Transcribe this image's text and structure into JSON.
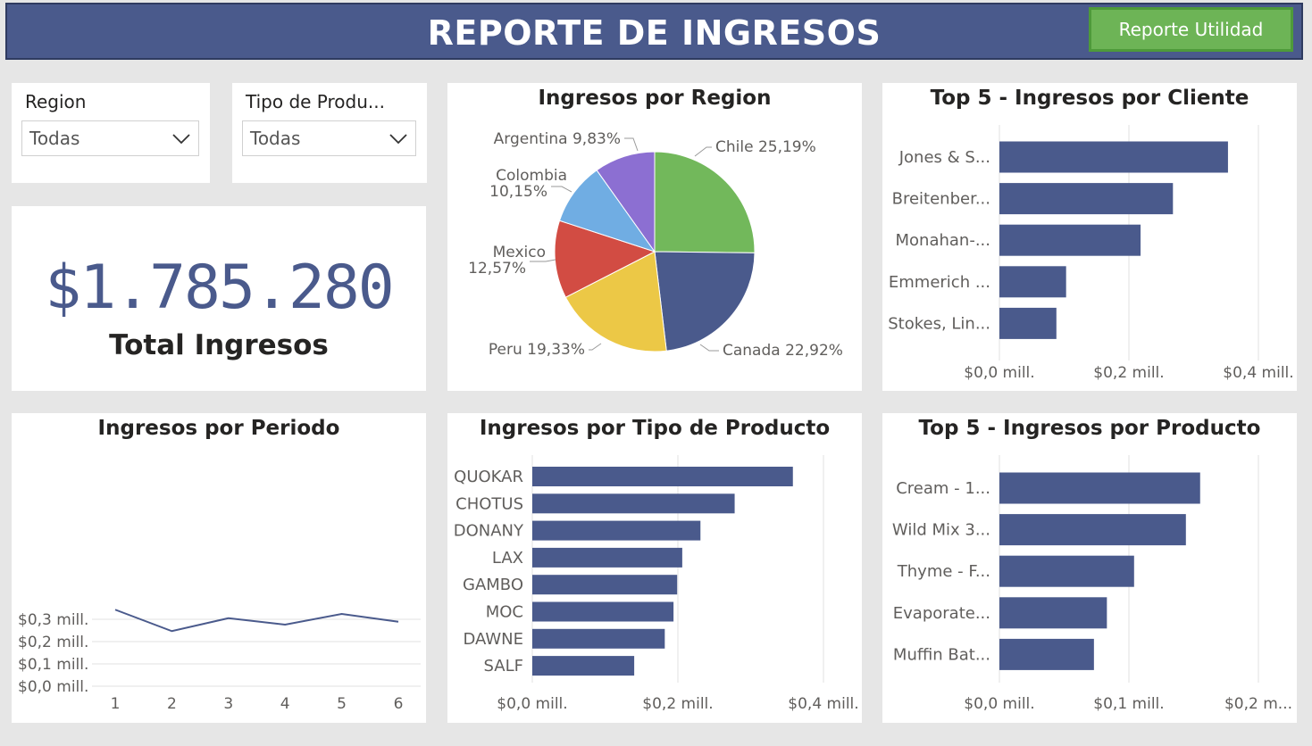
{
  "header": {
    "title": "REPORTE DE INGRESOS",
    "button_label": "Reporte Utilidad"
  },
  "colors": {
    "header": "#4a5a8c",
    "button": "#6db456",
    "bar": "#4a5a8c",
    "axis_text": "#605e5c"
  },
  "slicers": [
    {
      "label": "Region",
      "value": "Todas"
    },
    {
      "label": "Tipo de Produ...",
      "value": "Todas"
    }
  ],
  "kpi": {
    "value": "$1.785.280",
    "label": "Total Ingresos"
  },
  "chart_data": [
    {
      "type": "pie",
      "title": "Ingresos por Region",
      "slices": [
        {
          "label": "Chile 25,19%",
          "value": 25.19,
          "color": "#72b85b"
        },
        {
          "label": "Canada 22,92%",
          "value": 22.92,
          "color": "#4a5a8c"
        },
        {
          "label": "Peru 19,33%",
          "value": 19.33,
          "color": "#ecc846"
        },
        {
          "label": "Mexico 12,57%",
          "value": 12.57,
          "color": "#d24c43"
        },
        {
          "label": "Colombia 10,15%",
          "value": 10.15,
          "color": "#70ade3"
        },
        {
          "label": "Argentina 9,83%",
          "value": 9.83,
          "color": "#8c6fd2"
        }
      ]
    },
    {
      "type": "bar",
      "orientation": "horizontal",
      "title": "Top 5 - Ingresos por Cliente",
      "categories": [
        "Jones & S...",
        "Breitenber...",
        "Monahan-...",
        "Emmerich ...",
        "Stokes, Lin..."
      ],
      "values": [
        0.353,
        0.268,
        0.218,
        0.103,
        0.088
      ],
      "xlim": [
        0,
        0.4
      ],
      "ticks": [
        0,
        0.2,
        0.4
      ],
      "tick_labels": [
        "$0,0 mill.",
        "$0,2 mill.",
        "$0,4 mill."
      ]
    },
    {
      "type": "line",
      "title": "Ingresos por Periodo",
      "x": [
        1,
        2,
        3,
        4,
        5,
        6
      ],
      "x_labels": [
        "1",
        "2",
        "3",
        "4",
        "5",
        "6"
      ],
      "values": [
        0.343,
        0.247,
        0.305,
        0.276,
        0.324,
        0.289
      ],
      "ylim": [
        0,
        0.3
      ],
      "ticks": [
        0,
        0.1,
        0.2,
        0.3
      ],
      "tick_labels": [
        "$0,0 mill.",
        "$0,1 mill.",
        "$0,2 mill.",
        "$0,3 mill."
      ]
    },
    {
      "type": "bar",
      "orientation": "horizontal",
      "title": "Ingresos por Tipo de Producto",
      "categories": [
        "QUOKAR",
        "CHOTUS",
        "DONANY",
        "LAX",
        "GAMBO",
        "MOC",
        "DAWNE",
        "SALF"
      ],
      "values": [
        0.358,
        0.278,
        0.231,
        0.206,
        0.199,
        0.194,
        0.182,
        0.14
      ],
      "xlim": [
        0,
        0.4
      ],
      "ticks": [
        0,
        0.2,
        0.4
      ],
      "tick_labels": [
        "$0,0 mill.",
        "$0,2 mill.",
        "$0,4 mill."
      ]
    },
    {
      "type": "bar",
      "orientation": "horizontal",
      "title": "Top 5 - Ingresos por Producto",
      "categories": [
        "Cream - 1...",
        "Wild Mix 3...",
        "Thyme - F...",
        "Evaporate...",
        "Muffin Bat..."
      ],
      "values": [
        0.155,
        0.144,
        0.104,
        0.083,
        0.073
      ],
      "xlim": [
        0,
        0.2
      ],
      "ticks": [
        0,
        0.1,
        0.2
      ],
      "tick_labels": [
        "$0,0 mill.",
        "$0,1 mill.",
        "$0,2 m..."
      ]
    }
  ]
}
